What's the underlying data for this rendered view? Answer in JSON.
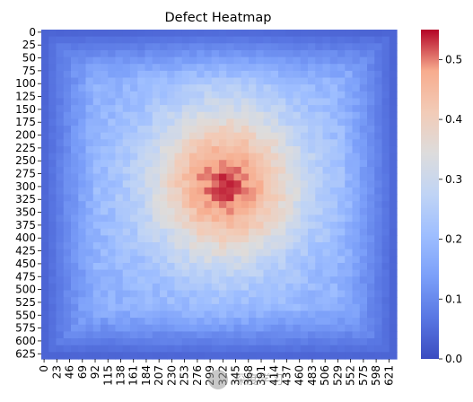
{
  "chart_data": {
    "type": "heatmap",
    "title": "Defect Heatmap",
    "x_tick_labels": [
      "0",
      "23",
      "46",
      "69",
      "92",
      "115",
      "138",
      "161",
      "184",
      "207",
      "230",
      "253",
      "276",
      "299",
      "322",
      "345",
      "368",
      "391",
      "414",
      "437",
      "460",
      "483",
      "506",
      "529",
      "552",
      "575",
      "598",
      "621"
    ],
    "y_tick_labels": [
      "0",
      "25",
      "50",
      "75",
      "100",
      "125",
      "150",
      "175",
      "200",
      "225",
      "250",
      "275",
      "300",
      "325",
      "350",
      "375",
      "400",
      "425",
      "450",
      "475",
      "500",
      "525",
      "550",
      "575",
      "600",
      "625"
    ],
    "x_range": [
      0,
      640
    ],
    "y_range": [
      0,
      640
    ],
    "value_range": [
      0.0,
      0.55
    ],
    "colorbar_ticks": [
      "0.0",
      "0.1",
      "0.2",
      "0.3",
      "0.4",
      "0.5"
    ],
    "colormap": "coolwarm",
    "description_of_field": {
      "background_level": 0.03,
      "hotspot_center": [
        300,
        300
      ],
      "peak_value": 0.52
    }
  },
  "watermark": {
    "text": "深度学习"
  }
}
